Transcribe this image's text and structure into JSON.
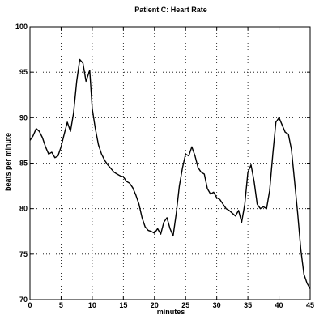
{
  "chart_data": {
    "type": "line",
    "title": "Patient C: Heart Rate",
    "xlabel": "minutes",
    "ylabel": "beats per minute",
    "xlim": [
      0,
      45
    ],
    "ylim": [
      70,
      100
    ],
    "grid": true,
    "grid_style": "dotted",
    "line_color": "#000000",
    "x_ticks": [
      0,
      5,
      10,
      15,
      20,
      25,
      30,
      35,
      40,
      45
    ],
    "y_ticks": [
      70,
      75,
      80,
      85,
      90,
      95,
      100
    ],
    "x_tick_labels": [
      "0",
      "5",
      "10",
      "15",
      "20",
      "25",
      "30",
      "35",
      "40",
      "45"
    ],
    "y_tick_labels": [
      "70",
      "75",
      "80",
      "85",
      "90",
      "95",
      "100"
    ],
    "series": [
      {
        "x": [
          0,
          0.5,
          1,
          1.5,
          2,
          2.5,
          3,
          3.5,
          4,
          4.5,
          5,
          5.5,
          6,
          6.5,
          7,
          7.5,
          8,
          8.5,
          9,
          9.3,
          9.6,
          10,
          10.5,
          11,
          11.5,
          12,
          12.5,
          13,
          13.5,
          14,
          14.5,
          15,
          15.5,
          16,
          16.5,
          17,
          17.5,
          18,
          18.5,
          19,
          19.5,
          20,
          20.5,
          21,
          21.5,
          22,
          22.5,
          23,
          23.5,
          24,
          24.5,
          25,
          25.5,
          26,
          26.5,
          27,
          27.5,
          28,
          28.5,
          29,
          29.5,
          30,
          30.5,
          31,
          31.5,
          32,
          32.5,
          33,
          33.5,
          34,
          34.5,
          35,
          35.5,
          36,
          36.5,
          37,
          37.5,
          38,
          38.5,
          39,
          39.5,
          40,
          40.5,
          41,
          41.5,
          42,
          42.5,
          43,
          43.5,
          44,
          44.5,
          45
        ],
        "y": [
          87.5,
          88,
          88.8,
          88.5,
          87.8,
          86.8,
          86.0,
          86.2,
          85.6,
          85.8,
          86.8,
          88.2,
          89.5,
          88.5,
          90.5,
          94.0,
          96.4,
          96.0,
          94.0,
          94.6,
          95.2,
          91.0,
          88.8,
          87.0,
          86.0,
          85.3,
          84.8,
          84.4,
          84.0,
          83.8,
          83.6,
          83.5,
          83.0,
          82.8,
          82.3,
          81.5,
          80.5,
          79.0,
          78.0,
          77.6,
          77.5,
          77.3,
          77.8,
          77.2,
          78.5,
          79.0,
          77.8,
          77.0,
          79.5,
          82.5,
          84.5,
          86.0,
          85.8,
          86.8,
          85.8,
          84.5,
          84.0,
          83.8,
          82.2,
          81.6,
          81.8,
          81.2,
          81.0,
          80.5,
          80.0,
          79.8,
          79.5,
          79.2,
          79.8,
          78.5,
          80.5,
          84.0,
          84.8,
          83.0,
          80.5,
          80.0,
          80.2,
          80.0,
          82.0,
          86.0,
          89.5,
          90.0,
          89.2,
          88.4,
          88.2,
          86.5,
          83.0,
          79.5,
          75.5,
          72.8,
          71.8,
          71.2
        ]
      }
    ]
  }
}
